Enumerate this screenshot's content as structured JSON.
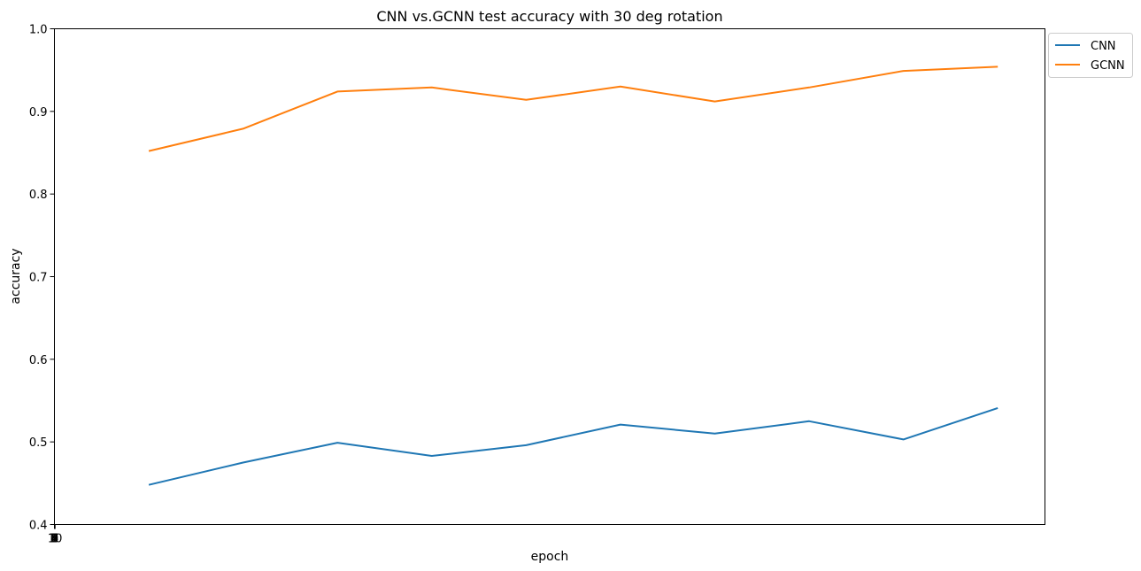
{
  "chart_data": {
    "type": "line",
    "title": "CNN vs.GCNN test accuracy with 30 deg rotation",
    "xlabel": "epoch",
    "ylabel": "accuracy",
    "x": [
      1,
      2,
      3,
      4,
      5,
      6,
      7,
      8,
      9,
      10
    ],
    "x_tick_labels": [
      "1",
      "2",
      "3",
      "4",
      "5",
      "6",
      "7",
      "8",
      "9",
      "10"
    ],
    "xlim": [
      0,
      10.5
    ],
    "ylim": [
      0.4,
      1.0
    ],
    "y_ticks": [
      "0.4",
      "0.5",
      "0.6",
      "0.7",
      "0.8",
      "0.9",
      "1.0"
    ],
    "grid": false,
    "legend_position": "outside-top-right",
    "series": [
      {
        "name": "CNN",
        "color": "#1f77b4",
        "values": [
          0.448,
          0.475,
          0.499,
          0.483,
          0.496,
          0.521,
          0.51,
          0.525,
          0.503,
          0.541
        ]
      },
      {
        "name": "GCNN",
        "color": "#ff7f0e",
        "values": [
          0.852,
          0.879,
          0.924,
          0.929,
          0.914,
          0.93,
          0.912,
          0.929,
          0.949,
          0.954
        ]
      }
    ]
  }
}
